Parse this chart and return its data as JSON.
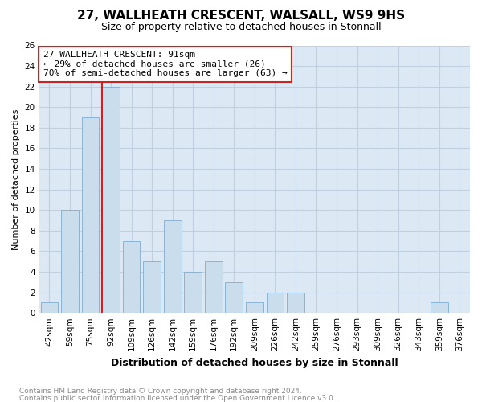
{
  "title_line1": "27, WALLHEATH CRESCENT, WALSALL, WS9 9HS",
  "title_line2": "Size of property relative to detached houses in Stonnall",
  "xlabel": "Distribution of detached houses by size in Stonnall",
  "ylabel": "Number of detached properties",
  "footnote1": "Contains HM Land Registry data © Crown copyright and database right 2024.",
  "footnote2": "Contains public sector information licensed under the Open Government Licence v3.0.",
  "bin_labels": [
    "42sqm",
    "59sqm",
    "75sqm",
    "92sqm",
    "109sqm",
    "126sqm",
    "142sqm",
    "159sqm",
    "176sqm",
    "192sqm",
    "209sqm",
    "226sqm",
    "242sqm",
    "259sqm",
    "276sqm",
    "293sqm",
    "309sqm",
    "326sqm",
    "343sqm",
    "359sqm",
    "376sqm"
  ],
  "bar_values": [
    1,
    10,
    19,
    22,
    7,
    5,
    9,
    4,
    5,
    3,
    1,
    2,
    2,
    0,
    0,
    0,
    0,
    0,
    0,
    1,
    0
  ],
  "bar_color": "#c9dded",
  "bar_edge_color": "#8ab4d4",
  "property_bin_index": 3,
  "vline_color": "#cc2222",
  "annotation_text": "27 WALLHEATH CRESCENT: 91sqm\n← 29% of detached houses are smaller (26)\n70% of semi-detached houses are larger (63) →",
  "annotation_box_color": "#ffffff",
  "annotation_box_edge": "#cc2222",
  "ylim": [
    0,
    26
  ],
  "yticks": [
    0,
    2,
    4,
    6,
    8,
    10,
    12,
    14,
    16,
    18,
    20,
    22,
    24,
    26
  ],
  "grid_color": "#c0d0e0",
  "bg_color": "#dce9f5",
  "fig_bg_color": "#ffffff",
  "title1_fontsize": 11,
  "title2_fontsize": 9,
  "xlabel_fontsize": 9,
  "ylabel_fontsize": 8,
  "tick_fontsize": 7.5,
  "annot_fontsize": 8,
  "footnote_fontsize": 6.5
}
